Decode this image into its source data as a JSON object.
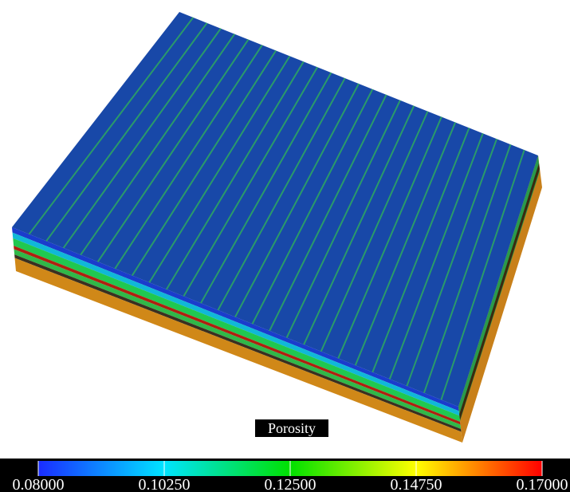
{
  "colorbar": {
    "title": "Porosity",
    "range": [
      0.08,
      0.17
    ],
    "colors": [
      "#1a2cff",
      "#00e4ff",
      "#00e000",
      "#ffff00",
      "#ff0000"
    ],
    "ticks": [
      {
        "value": 0.08,
        "label": "0.08000"
      },
      {
        "value": 0.1025,
        "label": "0.10250"
      },
      {
        "value": 0.125,
        "label": "0.12500"
      },
      {
        "value": 0.1475,
        "label": "0.14750"
      },
      {
        "value": 0.17,
        "label": "0.17000"
      }
    ]
  }
}
